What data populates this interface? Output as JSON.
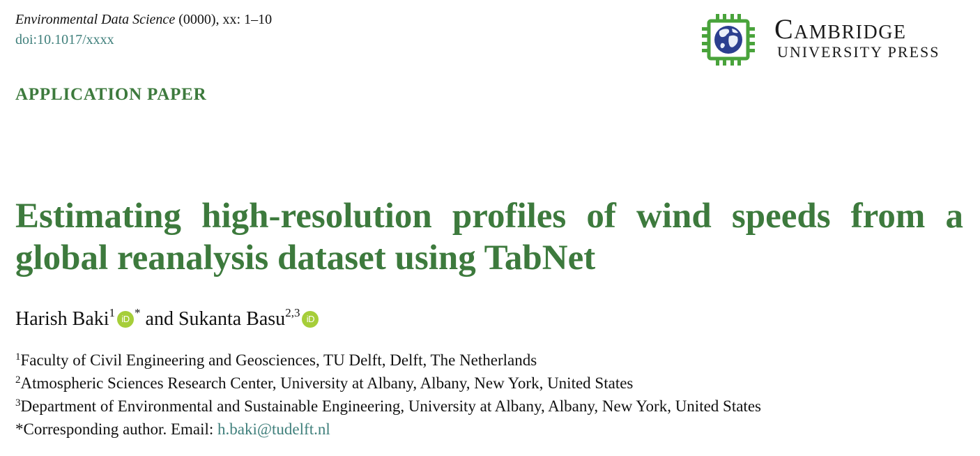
{
  "header": {
    "journal_name": "Environmental Data Science",
    "journal_meta": " (0000), xx: 1–10",
    "doi": "doi:10.1017/xxxx"
  },
  "logo": {
    "brand_main": "Cambridge",
    "brand_sub": "UNIVERSITY PRESS",
    "icon": "chip-globe-icon",
    "colors": {
      "chip_green": "#49a33b",
      "globe_blue": "#2b3f8f"
    }
  },
  "paper_type": "APPLICATION PAPER",
  "title": "Estimating high-resolution profiles of wind speeds from a global reanalysis dataset using TabNet",
  "authors": [
    {
      "name": "Harish Baki",
      "affil": "1",
      "orcid": "iD",
      "corresponding_mark": "*"
    },
    {
      "name": "Sukanta Basu",
      "affil": "2,3",
      "orcid": "iD"
    }
  ],
  "author_joiner": "and",
  "affiliations": [
    {
      "num": "1",
      "text": "Faculty of Civil Engineering and Geosciences, TU Delft, Delft, The Netherlands"
    },
    {
      "num": "2",
      "text": "Atmospheric Sciences Research Center, University at Albany, Albany, New York, United States"
    },
    {
      "num": "3",
      "text": "Department of Environmental and Sustainable Engineering, University at Albany, Albany, New York, United States"
    }
  ],
  "corresponding": {
    "label": "*Corresponding author. Email: ",
    "email": "h.baki@tudelft.nl"
  },
  "colors": {
    "title_green": "#3d7a3d",
    "link_teal": "#3f7f7b",
    "orcid_green": "#a6ce39"
  }
}
